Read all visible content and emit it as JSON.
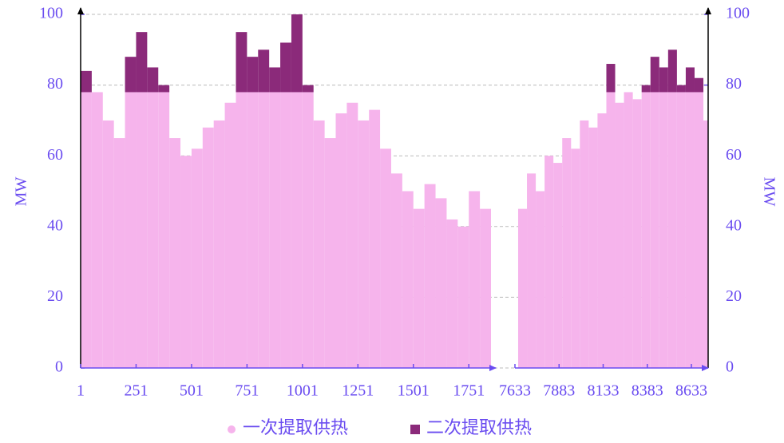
{
  "chart_data": {
    "type": "stacked_bar",
    "y_label": "MW",
    "x": [
      1,
      51,
      101,
      151,
      201,
      251,
      301,
      351,
      401,
      451,
      501,
      551,
      601,
      651,
      701,
      751,
      801,
      851,
      901,
      951,
      1001,
      1051,
      1101,
      1151,
      1201,
      1251,
      1301,
      1351,
      1401,
      1451,
      1501,
      1551,
      1601,
      1651,
      1701,
      1751,
      1801,
      7651,
      7701,
      7751,
      7801,
      7851,
      7901,
      7951,
      8001,
      8051,
      8101,
      8151,
      8201,
      8251,
      8301,
      8351,
      8401,
      8451,
      8501,
      8551,
      8601,
      8651,
      8701
    ],
    "x_segments": [
      {
        "xlim": [
          1,
          1851
        ],
        "xticks": [
          1,
          251,
          501,
          751,
          1001,
          1251,
          1501,
          1751
        ]
      },
      {
        "xlim": [
          7633,
          8728
        ],
        "xticks": [
          7633,
          7883,
          8133,
          8383,
          8633
        ]
      }
    ],
    "series": [
      {
        "name": "一次提取供热",
        "color": "#f6b4ec",
        "values": [
          78,
          78,
          70,
          65,
          78,
          78,
          78,
          78,
          65,
          60,
          62,
          68,
          70,
          75,
          78,
          78,
          78,
          78,
          78,
          78,
          78,
          70,
          65,
          72,
          75,
          70,
          73,
          62,
          55,
          50,
          45,
          52,
          48,
          42,
          40,
          50,
          45,
          45,
          55,
          50,
          60,
          58,
          65,
          62,
          70,
          68,
          72,
          78,
          75,
          78,
          76,
          78,
          78,
          78,
          78,
          78,
          78,
          78,
          70
        ]
      },
      {
        "name": "二次提取供热",
        "color": "#8b2a7a",
        "values": [
          6,
          0,
          0,
          0,
          10,
          17,
          7,
          2,
          0,
          0,
          0,
          0,
          0,
          0,
          17,
          10,
          12,
          7,
          14,
          22,
          2,
          0,
          0,
          0,
          0,
          0,
          0,
          0,
          0,
          0,
          0,
          0,
          0,
          0,
          0,
          0,
          0,
          0,
          0,
          0,
          0,
          0,
          0,
          0,
          0,
          0,
          0,
          8,
          0,
          0,
          0,
          2,
          10,
          7,
          12,
          2,
          7,
          4,
          0
        ]
      }
    ],
    "ylim": [
      0,
      100
    ],
    "yticks": [
      0,
      20,
      40,
      60,
      80,
      100
    ],
    "y2lim": [
      0,
      100
    ],
    "y2ticks": [
      0,
      20,
      40,
      60,
      80,
      100
    ],
    "grid": true,
    "legend": "bottom"
  }
}
